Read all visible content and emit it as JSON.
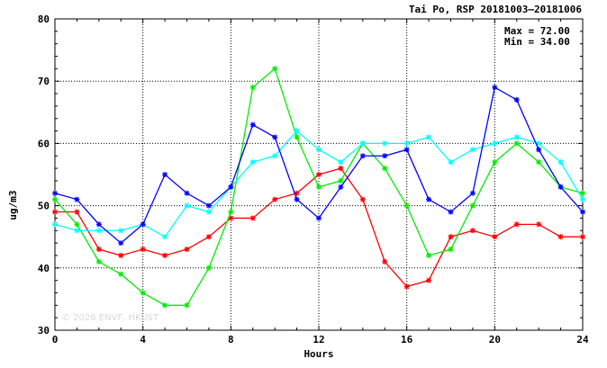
{
  "chart_data": {
    "type": "line",
    "title": "Tai Po, RSP 20181003–20181006",
    "xlabel": "Hours",
    "ylabel": "ug/m3",
    "xlim": [
      0,
      24
    ],
    "ylim": [
      30,
      80
    ],
    "xticks": [
      0,
      4,
      8,
      12,
      16,
      20,
      24
    ],
    "yticks": [
      30,
      40,
      50,
      60,
      70,
      80
    ],
    "grid": true,
    "annotations": {
      "max": "Max = 72.00",
      "min": "Min = 34.00"
    },
    "watermark": "© 2026  ENVF, HKUST",
    "x": [
      0,
      1,
      2,
      3,
      4,
      5,
      6,
      7,
      8,
      9,
      10,
      11,
      12,
      13,
      14,
      15,
      16,
      17,
      18,
      19,
      20,
      21,
      22,
      23,
      24
    ],
    "series": [
      {
        "color": "#ff0000",
        "values": [
          49,
          49,
          43,
          42,
          43,
          42,
          43,
          45,
          48,
          48,
          51,
          52,
          55,
          56,
          51,
          41,
          37,
          38,
          45,
          46,
          45,
          47,
          47,
          45,
          45
        ]
      },
      {
        "color": "#00ee00",
        "values": [
          51,
          47,
          41,
          39,
          36,
          34,
          34,
          40,
          49,
          69,
          72,
          61,
          53,
          54,
          60,
          56,
          50,
          42,
          43,
          50,
          57,
          60,
          57,
          53,
          52
        ]
      },
      {
        "color": "#00ffff",
        "values": [
          47,
          46,
          46,
          46,
          47,
          45,
          50,
          49,
          53,
          57,
          58,
          62,
          59,
          57,
          60,
          60,
          60,
          61,
          57,
          59,
          60,
          61,
          60,
          57,
          51
        ]
      },
      {
        "color": "#0000ff",
        "values": [
          52,
          51,
          47,
          44,
          47,
          55,
          52,
          50,
          53,
          63,
          61,
          51,
          48,
          53,
          58,
          58,
          59,
          51,
          49,
          52,
          69,
          67,
          59,
          53,
          49
        ]
      }
    ]
  }
}
